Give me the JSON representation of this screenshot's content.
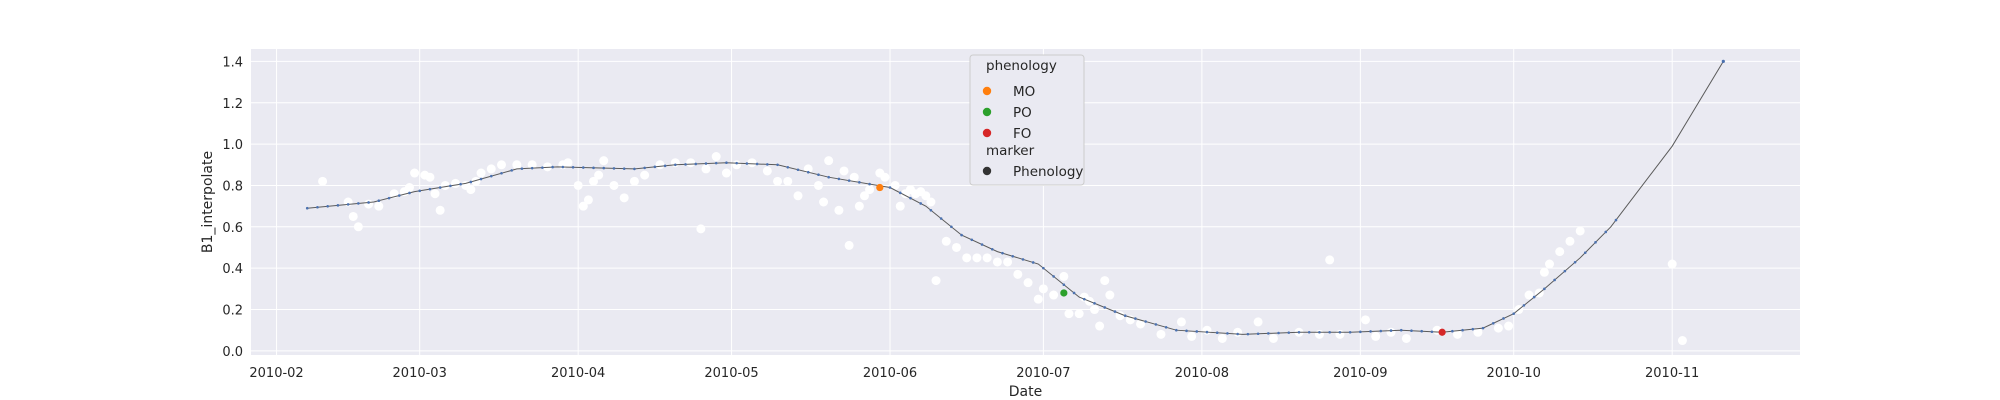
{
  "chart_data": {
    "type": "scatter",
    "xlabel": "Date",
    "ylabel": "B1_interpolate",
    "x_tick_labels": [
      "2010-02",
      "2010-03",
      "2010-04",
      "2010-05",
      "2010-06",
      "2010-07",
      "2010-08",
      "2010-09",
      "2010-10",
      "2010-11"
    ],
    "x_ticks": [
      "2010-02-01",
      "2010-03-01",
      "2010-04-01",
      "2010-05-01",
      "2010-06-01",
      "2010-07-01",
      "2010-08-01",
      "2010-09-01",
      "2010-10-01",
      "2010-11-01"
    ],
    "xlim": [
      "2010-01-27",
      "2010-11-26"
    ],
    "y_ticks": [
      0.0,
      0.2,
      0.4,
      0.6,
      0.8,
      1.0,
      1.2,
      1.4
    ],
    "y_tick_labels": [
      "0.0",
      "0.2",
      "0.4",
      "0.6",
      "0.8",
      "1.0",
      "1.2",
      "1.4"
    ],
    "ylim": [
      -0.02,
      1.46
    ],
    "grid": true,
    "legend_position": "top-center",
    "background_color": "#eaeaf2",
    "grid_color": "#ffffff",
    "line_color": "#5a5a5a",
    "dot_color": "#4c72b0",
    "raw_point_color": "#ffffff",
    "series": [
      {
        "kind": "raw-observations",
        "points": [
          [
            "2010-02-10",
            0.82
          ],
          [
            "2010-02-15",
            0.72
          ],
          [
            "2010-02-16",
            0.65
          ],
          [
            "2010-02-17",
            0.6
          ],
          [
            "2010-02-19",
            0.71
          ],
          [
            "2010-02-21",
            0.7
          ],
          [
            "2010-02-24",
            0.76
          ],
          [
            "2010-02-26",
            0.77
          ],
          [
            "2010-02-27",
            0.79
          ],
          [
            "2010-02-28",
            0.86
          ],
          [
            "2010-03-02",
            0.85
          ],
          [
            "2010-03-03",
            0.84
          ],
          [
            "2010-03-04",
            0.76
          ],
          [
            "2010-03-05",
            0.68
          ],
          [
            "2010-03-06",
            0.8
          ],
          [
            "2010-03-08",
            0.81
          ],
          [
            "2010-03-10",
            0.8
          ],
          [
            "2010-03-11",
            0.78
          ],
          [
            "2010-03-12",
            0.82
          ],
          [
            "2010-03-13",
            0.86
          ],
          [
            "2010-03-15",
            0.88
          ],
          [
            "2010-03-17",
            0.9
          ],
          [
            "2010-03-20",
            0.9
          ],
          [
            "2010-03-23",
            0.9
          ],
          [
            "2010-03-26",
            0.89
          ],
          [
            "2010-03-29",
            0.9
          ],
          [
            "2010-03-30",
            0.91
          ],
          [
            "2010-04-01",
            0.8
          ],
          [
            "2010-04-02",
            0.7
          ],
          [
            "2010-04-03",
            0.73
          ],
          [
            "2010-04-04",
            0.82
          ],
          [
            "2010-04-05",
            0.85
          ],
          [
            "2010-04-06",
            0.92
          ],
          [
            "2010-04-08",
            0.8
          ],
          [
            "2010-04-10",
            0.74
          ],
          [
            "2010-04-12",
            0.82
          ],
          [
            "2010-04-14",
            0.85
          ],
          [
            "2010-04-17",
            0.9
          ],
          [
            "2010-04-20",
            0.91
          ],
          [
            "2010-04-23",
            0.91
          ],
          [
            "2010-04-25",
            0.59
          ],
          [
            "2010-04-26",
            0.88
          ],
          [
            "2010-04-28",
            0.94
          ],
          [
            "2010-04-30",
            0.86
          ],
          [
            "2010-05-02",
            0.9
          ],
          [
            "2010-05-05",
            0.91
          ],
          [
            "2010-05-08",
            0.87
          ],
          [
            "2010-05-10",
            0.82
          ],
          [
            "2010-05-12",
            0.82
          ],
          [
            "2010-05-14",
            0.75
          ],
          [
            "2010-05-16",
            0.88
          ],
          [
            "2010-05-18",
            0.8
          ],
          [
            "2010-05-19",
            0.72
          ],
          [
            "2010-05-20",
            0.92
          ],
          [
            "2010-05-22",
            0.68
          ],
          [
            "2010-05-23",
            0.87
          ],
          [
            "2010-05-24",
            0.51
          ],
          [
            "2010-05-25",
            0.84
          ],
          [
            "2010-05-26",
            0.7
          ],
          [
            "2010-05-27",
            0.75
          ],
          [
            "2010-05-28",
            0.78
          ],
          [
            "2010-05-30",
            0.86
          ],
          [
            "2010-05-31",
            0.84
          ],
          [
            "2010-06-02",
            0.8
          ],
          [
            "2010-06-03",
            0.7
          ],
          [
            "2010-06-04",
            0.76
          ],
          [
            "2010-06-05",
            0.78
          ],
          [
            "2010-06-06",
            0.76
          ],
          [
            "2010-06-07",
            0.77
          ],
          [
            "2010-06-08",
            0.75
          ],
          [
            "2010-06-09",
            0.72
          ],
          [
            "2010-06-10",
            0.34
          ],
          [
            "2010-06-12",
            0.53
          ],
          [
            "2010-06-14",
            0.5
          ],
          [
            "2010-06-16",
            0.45
          ],
          [
            "2010-06-18",
            0.45
          ],
          [
            "2010-06-20",
            0.45
          ],
          [
            "2010-06-22",
            0.43
          ],
          [
            "2010-06-24",
            0.43
          ],
          [
            "2010-06-26",
            0.37
          ],
          [
            "2010-06-28",
            0.33
          ],
          [
            "2010-06-30",
            0.25
          ],
          [
            "2010-07-01",
            0.3
          ],
          [
            "2010-07-03",
            0.27
          ],
          [
            "2010-07-05",
            0.36
          ],
          [
            "2010-07-06",
            0.18
          ],
          [
            "2010-07-08",
            0.18
          ],
          [
            "2010-07-09",
            0.26
          ],
          [
            "2010-07-10",
            0.24
          ],
          [
            "2010-07-11",
            0.2
          ],
          [
            "2010-07-12",
            0.12
          ],
          [
            "2010-07-13",
            0.34
          ],
          [
            "2010-07-14",
            0.27
          ],
          [
            "2010-07-16",
            0.17
          ],
          [
            "2010-07-18",
            0.15
          ],
          [
            "2010-07-20",
            0.13
          ],
          [
            "2010-07-24",
            0.08
          ],
          [
            "2010-07-28",
            0.14
          ],
          [
            "2010-07-30",
            0.07
          ],
          [
            "2010-08-02",
            0.1
          ],
          [
            "2010-08-05",
            0.06
          ],
          [
            "2010-08-08",
            0.09
          ],
          [
            "2010-08-12",
            0.14
          ],
          [
            "2010-08-15",
            0.06
          ],
          [
            "2010-08-20",
            0.09
          ],
          [
            "2010-08-24",
            0.08
          ],
          [
            "2010-08-26",
            0.44
          ],
          [
            "2010-08-28",
            0.08
          ],
          [
            "2010-09-02",
            0.15
          ],
          [
            "2010-09-04",
            0.07
          ],
          [
            "2010-09-07",
            0.09
          ],
          [
            "2010-09-10",
            0.06
          ],
          [
            "2010-09-16",
            0.1
          ],
          [
            "2010-09-20",
            0.08
          ],
          [
            "2010-09-24",
            0.09
          ],
          [
            "2010-09-28",
            0.11
          ],
          [
            "2010-09-30",
            0.12
          ],
          [
            "2010-10-02",
            0.2
          ],
          [
            "2010-10-04",
            0.27
          ],
          [
            "2010-10-06",
            0.28
          ],
          [
            "2010-10-07",
            0.38
          ],
          [
            "2010-10-08",
            0.42
          ],
          [
            "2010-10-10",
            0.48
          ],
          [
            "2010-10-12",
            0.53
          ],
          [
            "2010-10-14",
            0.58
          ],
          [
            "2010-11-01",
            0.42
          ],
          [
            "2010-11-03",
            0.05
          ]
        ]
      },
      {
        "kind": "interpolated-line",
        "points": [
          [
            "2010-02-07",
            0.69
          ],
          [
            "2010-02-20",
            0.72
          ],
          [
            "2010-02-28",
            0.77
          ],
          [
            "2010-03-10",
            0.81
          ],
          [
            "2010-03-20",
            0.88
          ],
          [
            "2010-03-28",
            0.89
          ],
          [
            "2010-04-12",
            0.88
          ],
          [
            "2010-04-20",
            0.9
          ],
          [
            "2010-04-30",
            0.91
          ],
          [
            "2010-05-10",
            0.9
          ],
          [
            "2010-05-20",
            0.84
          ],
          [
            "2010-06-01",
            0.79
          ],
          [
            "2010-06-08",
            0.7
          ],
          [
            "2010-06-15",
            0.56
          ],
          [
            "2010-06-22",
            0.48
          ],
          [
            "2010-06-30",
            0.42
          ],
          [
            "2010-07-08",
            0.26
          ],
          [
            "2010-07-17",
            0.17
          ],
          [
            "2010-07-27",
            0.1
          ],
          [
            "2010-08-09",
            0.08
          ],
          [
            "2010-08-20",
            0.09
          ],
          [
            "2010-08-30",
            0.09
          ],
          [
            "2010-09-09",
            0.1
          ],
          [
            "2010-09-17",
            0.09
          ],
          [
            "2010-09-25",
            0.11
          ],
          [
            "2010-10-01",
            0.18
          ],
          [
            "2010-10-07",
            0.3
          ],
          [
            "2010-10-14",
            0.45
          ],
          [
            "2010-10-20",
            0.6
          ],
          [
            "2010-11-01",
            0.99
          ],
          [
            "2010-11-11",
            1.4
          ]
        ]
      }
    ],
    "phenology_points": [
      {
        "label": "MO",
        "date": "2010-05-30",
        "value": 0.79,
        "color": "#ff7f0e"
      },
      {
        "label": "PO",
        "date": "2010-07-05",
        "value": 0.28,
        "color": "#2ca02c"
      },
      {
        "label": "FO",
        "date": "2010-09-17",
        "value": 0.09,
        "color": "#d62728"
      }
    ],
    "legend": {
      "title_phenology": "phenology",
      "entries": [
        {
          "label": "MO",
          "color": "#ff7f0e"
        },
        {
          "label": "PO",
          "color": "#2ca02c"
        },
        {
          "label": "FO",
          "color": "#d62728"
        }
      ],
      "title_marker": "marker",
      "marker_entries": [
        {
          "label": "Phenology",
          "color": "#333333"
        }
      ]
    }
  }
}
